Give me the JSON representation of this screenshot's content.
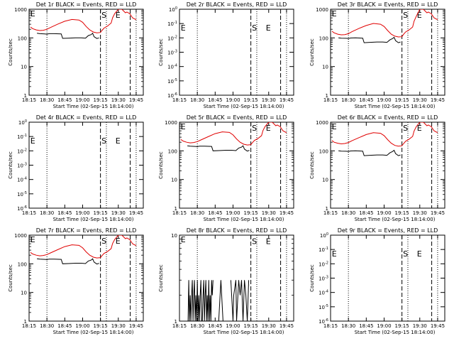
{
  "chart_data": [
    {
      "type": "line",
      "title": "Det 1r BLACK = Events, RED = LLD",
      "xlabel": "Start Time (02-Sep-15 18:14:00)",
      "ylabel": "Counts/sec",
      "xticks": [
        "18:15",
        "18:30",
        "18:45",
        "19:00",
        "19:15",
        "19:30",
        "19:45"
      ],
      "yscale": "log",
      "yticks": [
        "1",
        "10",
        "100",
        "1000"
      ],
      "ylim": [
        1,
        1000
      ],
      "dotted_x": [
        18.5,
        19.333,
        19.75
      ],
      "dashed_x": [
        19.25,
        19.667
      ],
      "markers": [
        {
          "t": "E",
          "x": 18.267,
          "y": 1000
        },
        {
          "t": "S",
          "x": 19.265,
          "y": 900
        },
        {
          "t": "E",
          "x": 19.46,
          "y": 900
        }
      ],
      "series": [
        {
          "color": "#000000",
          "x": [
            18.36,
            18.4,
            18.47,
            18.5,
            18.53,
            18.6,
            18.7,
            18.72,
            18.8,
            18.9,
            18.98,
            19.04,
            19.08,
            19.12,
            19.14,
            19.16,
            19.2,
            19.23
          ],
          "y": [
            145,
            140,
            138,
            135,
            140,
            140,
            138,
            96,
            98,
            100,
            100,
            98,
            120,
            130,
            145,
            110,
            95,
            100
          ]
        },
        {
          "color": "#e00000",
          "x": [
            18.27,
            18.3,
            18.35,
            18.4,
            18.45,
            18.5,
            18.55,
            18.65,
            18.75,
            18.85,
            18.95,
            19.0,
            19.05,
            19.1,
            19.15,
            19.2,
            19.25,
            19.27,
            19.3,
            19.35,
            19.4,
            19.42,
            19.45,
            19.5,
            19.55,
            19.6,
            19.62,
            19.66,
            19.7,
            19.75
          ],
          "y": [
            240,
            210,
            190,
            180,
            185,
            200,
            230,
            300,
            380,
            440,
            420,
            350,
            250,
            190,
            160,
            150,
            155,
            180,
            220,
            260,
            330,
            500,
            700,
            1000,
            1000,
            750,
            800,
            700,
            500,
            430
          ]
        }
      ]
    },
    {
      "type": "line",
      "title": "Det 2r BLACK = Events, RED = LLD",
      "xlabel": "Start Time (02-Sep-15 18:14:00)",
      "ylabel": "Counts/sec",
      "xticks": [
        "18:15",
        "18:30",
        "18:45",
        "19:00",
        "19:15",
        "19:30",
        "19:45"
      ],
      "yscale": "log",
      "yticks": [
        "10^0",
        "10^-1",
        "10^-2",
        "10^-3",
        "10^-4",
        "10^-5",
        "10^-6"
      ],
      "dotted_x": [
        18.5,
        19.333,
        19.75
      ],
      "dashed_x": [
        19.25,
        19.667
      ],
      "markers": [
        {
          "t": "E",
          "x": 18.267,
          "y": 0.1
        },
        {
          "t": "S",
          "x": 19.265,
          "y": 0.1
        },
        {
          "t": "E",
          "x": 19.46,
          "y": 0.1
        }
      ],
      "series": []
    },
    {
      "type": "line",
      "title": "Det 3r BLACK = Events, RED = LLD",
      "xlabel": "Start Time (02-Sep-15 18:14:00)",
      "ylabel": "Counts/sec",
      "xticks": [
        "18:15",
        "18:30",
        "18:45",
        "19:00",
        "19:15",
        "19:30",
        "19:45"
      ],
      "yscale": "log",
      "yticks": [
        "1",
        "10",
        "100",
        "1000"
      ],
      "ylim": [
        1,
        1000
      ],
      "dotted_x": [
        18.5,
        19.333,
        19.75
      ],
      "dashed_x": [
        19.25,
        19.667
      ],
      "markers": [
        {
          "t": "E",
          "x": 18.267,
          "y": 1000
        },
        {
          "t": "S",
          "x": 19.265,
          "y": 900
        },
        {
          "t": "E",
          "x": 19.46,
          "y": 900
        }
      ],
      "series": [
        {
          "color": "#000000",
          "x": [
            18.36,
            18.4,
            18.47,
            18.5,
            18.53,
            18.6,
            18.7,
            18.72,
            18.8,
            18.9,
            18.98,
            19.04,
            19.08,
            19.12,
            19.14,
            19.16,
            19.2,
            19.23
          ],
          "y": [
            100,
            98,
            97,
            95,
            99,
            100,
            98,
            68,
            70,
            72,
            72,
            70,
            85,
            95,
            105,
            80,
            68,
            72
          ]
        },
        {
          "color": "#e00000",
          "x": [
            18.27,
            18.3,
            18.35,
            18.4,
            18.45,
            18.5,
            18.55,
            18.65,
            18.75,
            18.85,
            18.95,
            19.0,
            19.05,
            19.1,
            19.15,
            19.2,
            19.25,
            19.27,
            19.3,
            19.35,
            19.4,
            19.42,
            19.45,
            19.5,
            19.55,
            19.6,
            19.62,
            19.66,
            19.7,
            19.75
          ],
          "y": [
            170,
            150,
            135,
            128,
            130,
            140,
            165,
            215,
            270,
            320,
            300,
            250,
            180,
            135,
            115,
            108,
            110,
            130,
            160,
            190,
            240,
            380,
            560,
            1000,
            1000,
            750,
            800,
            700,
            500,
            430
          ]
        }
      ]
    },
    {
      "type": "line",
      "title": "Det 4r BLACK = Events, RED = LLD",
      "xlabel": "Start Time (02-Sep-15 18:14:00)",
      "ylabel": "Counts/sec",
      "xticks": [
        "18:15",
        "18:30",
        "18:45",
        "19:00",
        "19:15",
        "19:30",
        "19:45"
      ],
      "yscale": "log",
      "yticks": [
        "10^0",
        "10^-1",
        "10^-2",
        "10^-3",
        "10^-4",
        "10^-5",
        "10^-6"
      ],
      "dotted_x": [
        18.5,
        19.333,
        19.75
      ],
      "dashed_x": [
        19.25,
        19.667
      ],
      "markers": [
        {
          "t": "E",
          "x": 18.267,
          "y": 0.1
        },
        {
          "t": "S",
          "x": 19.265,
          "y": 0.1
        },
        {
          "t": "E",
          "x": 19.46,
          "y": 0.1
        }
      ],
      "series": []
    },
    {
      "type": "line",
      "title": "Det 5r BLACK = Events, RED = LLD",
      "xlabel": "Start Time (02-Sep-15 18:14:00)",
      "ylabel": "Counts/sec",
      "xticks": [
        "18:15",
        "18:30",
        "18:45",
        "19:00",
        "19:15",
        "19:30",
        "19:45"
      ],
      "yscale": "log",
      "yticks": [
        "1",
        "10",
        "100",
        "1000"
      ],
      "ylim": [
        1,
        1000
      ],
      "dotted_x": [
        18.5,
        19.333,
        19.75
      ],
      "dashed_x": [
        19.25,
        19.667
      ],
      "markers": [
        {
          "t": "E",
          "x": 18.267,
          "y": 1000
        },
        {
          "t": "S",
          "x": 19.265,
          "y": 900
        },
        {
          "t": "E",
          "x": 19.46,
          "y": 900
        }
      ],
      "series": [
        {
          "color": "#000000",
          "x": [
            18.36,
            18.4,
            18.47,
            18.5,
            18.53,
            18.6,
            18.7,
            18.72,
            18.8,
            18.9,
            18.98,
            19.04,
            19.08,
            19.12,
            19.14,
            19.16,
            19.2,
            19.23
          ],
          "y": [
            150,
            145,
            143,
            140,
            145,
            145,
            143,
            100,
            102,
            105,
            105,
            102,
            125,
            135,
            150,
            115,
            98,
            104
          ]
        },
        {
          "color": "#e00000",
          "x": [
            18.27,
            18.3,
            18.35,
            18.4,
            18.45,
            18.5,
            18.55,
            18.65,
            18.75,
            18.85,
            18.95,
            19.0,
            19.05,
            19.1,
            19.15,
            19.2,
            19.25,
            19.27,
            19.3,
            19.35,
            19.4,
            19.42,
            19.45,
            19.5,
            19.55,
            19.6,
            19.62,
            19.66,
            19.7,
            19.75
          ],
          "y": [
            250,
            220,
            200,
            190,
            195,
            210,
            240,
            310,
            400,
            460,
            440,
            360,
            260,
            200,
            170,
            160,
            165,
            190,
            230,
            270,
            340,
            510,
            710,
            1000,
            1000,
            750,
            800,
            700,
            500,
            430
          ]
        }
      ]
    },
    {
      "type": "line",
      "title": "Det 6r BLACK = Events, RED = LLD",
      "xlabel": "Start Time (02-Sep-15 18:14:00)",
      "ylabel": "Counts/sec",
      "xticks": [
        "18:15",
        "18:30",
        "18:45",
        "19:00",
        "19:15",
        "19:30",
        "19:45"
      ],
      "yscale": "log",
      "yticks": [
        "1",
        "10",
        "100",
        "1000"
      ],
      "ylim": [
        1,
        1000
      ],
      "dotted_x": [
        18.5,
        19.333,
        19.75
      ],
      "dashed_x": [
        19.25,
        19.667
      ],
      "markers": [
        {
          "t": "E",
          "x": 18.267,
          "y": 1000
        },
        {
          "t": "S",
          "x": 19.265,
          "y": 900
        },
        {
          "t": "E",
          "x": 19.46,
          "y": 900
        }
      ],
      "series": [
        {
          "color": "#000000",
          "x": [
            18.36,
            18.4,
            18.47,
            18.5,
            18.53,
            18.6,
            18.7,
            18.72,
            18.8,
            18.9,
            18.98,
            19.04,
            19.08,
            19.12,
            19.14,
            19.16,
            19.2,
            19.23
          ],
          "y": [
            100,
            98,
            97,
            95,
            99,
            100,
            98,
            68,
            70,
            72,
            72,
            70,
            85,
            95,
            105,
            80,
            68,
            72
          ]
        },
        {
          "color": "#e00000",
          "x": [
            18.27,
            18.3,
            18.35,
            18.4,
            18.45,
            18.5,
            18.55,
            18.65,
            18.75,
            18.85,
            18.95,
            19.0,
            19.05,
            19.1,
            19.15,
            19.2,
            19.25,
            19.27,
            19.3,
            19.35,
            19.4,
            19.42,
            19.45,
            19.5,
            19.55,
            19.6,
            19.62,
            19.66,
            19.7,
            19.75
          ],
          "y": [
            230,
            200,
            185,
            175,
            180,
            195,
            225,
            290,
            370,
            430,
            410,
            340,
            245,
            185,
            155,
            145,
            150,
            175,
            215,
            255,
            320,
            490,
            690,
            1000,
            1000,
            750,
            800,
            700,
            500,
            430
          ]
        }
      ]
    },
    {
      "type": "line",
      "title": "Det 7r BLACK = Events, RED = LLD",
      "xlabel": "Start Time (02-Sep-15 18:14:00)",
      "ylabel": "Counts/sec",
      "xticks": [
        "18:15",
        "18:30",
        "18:45",
        "19:00",
        "19:15",
        "19:30",
        "19:45"
      ],
      "yscale": "log",
      "yticks": [
        "1",
        "10",
        "100",
        "1000"
      ],
      "ylim": [
        1,
        1000
      ],
      "dotted_x": [
        18.5,
        19.333,
        19.75
      ],
      "dashed_x": [
        19.25,
        19.667
      ],
      "markers": [
        {
          "t": "E",
          "x": 18.267,
          "y": 1000
        },
        {
          "t": "S",
          "x": 19.265,
          "y": 900
        },
        {
          "t": "E",
          "x": 19.46,
          "y": 900
        }
      ],
      "series": [
        {
          "color": "#000000",
          "x": [
            18.36,
            18.4,
            18.47,
            18.5,
            18.53,
            18.6,
            18.7,
            18.72,
            18.8,
            18.9,
            18.98,
            19.04,
            19.08,
            19.12,
            19.14,
            19.16,
            19.2,
            19.23
          ],
          "y": [
            150,
            145,
            143,
            140,
            145,
            145,
            143,
            100,
            102,
            105,
            105,
            102,
            125,
            135,
            150,
            115,
            98,
            104
          ]
        },
        {
          "color": "#e00000",
          "x": [
            18.27,
            18.3,
            18.35,
            18.4,
            18.45,
            18.5,
            18.55,
            18.65,
            18.75,
            18.85,
            18.95,
            19.0,
            19.05,
            19.1,
            19.15,
            19.2,
            19.25,
            19.27,
            19.3,
            19.35,
            19.4,
            19.42,
            19.45,
            19.5,
            19.55,
            19.6,
            19.62,
            19.66,
            19.7,
            19.75
          ],
          "y": [
            250,
            220,
            200,
            190,
            195,
            210,
            240,
            310,
            400,
            460,
            440,
            360,
            260,
            200,
            170,
            160,
            165,
            190,
            230,
            270,
            340,
            510,
            710,
            1000,
            1000,
            750,
            800,
            700,
            500,
            430
          ]
        }
      ]
    },
    {
      "type": "line",
      "title": "Det 8r BLACK = Events, RED = LLD",
      "xlabel": "Start Time (02-Sep-15 18:14:00)",
      "ylabel": "Counts/sec",
      "xticks": [
        "18:15",
        "18:30",
        "18:45",
        "19:00",
        "19:15",
        "19:30",
        "19:45"
      ],
      "yscale": "log",
      "yticks": [
        "1",
        "10"
      ],
      "ylim": [
        1,
        10
      ],
      "dotted_x": [
        18.5,
        19.333,
        19.75
      ],
      "dashed_x": [
        19.25,
        19.667
      ],
      "markers": [
        {
          "t": "E",
          "x": 18.267,
          "y": 10
        },
        {
          "t": "S",
          "x": 19.265,
          "y": 9.5
        },
        {
          "t": "E",
          "x": 19.46,
          "y": 9.5
        }
      ],
      "series": [
        {
          "color": "#000000",
          "x": [
            18.37,
            18.38,
            18.39,
            18.4,
            18.41,
            18.42,
            18.43,
            18.44,
            18.45,
            18.46,
            18.47,
            18.48,
            18.49,
            18.5,
            18.51,
            18.52,
            18.53,
            18.54,
            18.55,
            18.56,
            18.57,
            18.58,
            18.59,
            18.6,
            18.61,
            18.62,
            18.63,
            18.64,
            18.65,
            18.66,
            18.67,
            18.68,
            18.69,
            18.7,
            18.71,
            18.72
          ],
          "y": [
            1,
            3,
            1,
            2,
            1,
            2,
            3,
            1,
            2,
            3,
            1,
            2,
            1,
            3,
            1,
            2,
            1,
            2,
            3,
            1,
            1,
            2,
            3,
            1,
            2,
            3,
            1,
            2,
            1,
            3,
            1,
            2,
            1,
            3,
            2,
            3
          ]
        },
        {
          "color": "#000000",
          "x": [
            18.8,
            18.83,
            18.86
          ],
          "y": [
            1,
            3,
            1
          ]
        },
        {
          "color": "#000000",
          "x": [
            18.97,
            19.0,
            19.01,
            19.04,
            19.05,
            19.08,
            19.1,
            19.12,
            19.14,
            19.16,
            19.18,
            19.2,
            19.22
          ],
          "y": [
            3,
            1,
            2,
            3,
            1,
            3,
            2,
            3,
            1,
            3,
            2,
            1,
            3
          ]
        }
      ]
    },
    {
      "type": "line",
      "title": "Det 9r BLACK = Events, RED = LLD",
      "xlabel": "Start Time (02-Sep-15 18:14:00)",
      "ylabel": "Counts/sec",
      "xticks": [
        "18:15",
        "18:30",
        "18:45",
        "19:00",
        "19:15",
        "19:30",
        "19:45"
      ],
      "yscale": "log",
      "yticks": [
        "10^0",
        "10^-1",
        "10^-2",
        "10^-3",
        "10^-4",
        "10^-5",
        "10^-6"
      ],
      "dotted_x": [
        18.5,
        19.333,
        19.75
      ],
      "dashed_x": [
        19.25,
        19.667
      ],
      "markers": [
        {
          "t": "E",
          "x": 18.267,
          "y": 0.1
        },
        {
          "t": "S",
          "x": 19.265,
          "y": 0.1
        },
        {
          "t": "E",
          "x": 19.46,
          "y": 0.1
        }
      ],
      "series": []
    }
  ]
}
